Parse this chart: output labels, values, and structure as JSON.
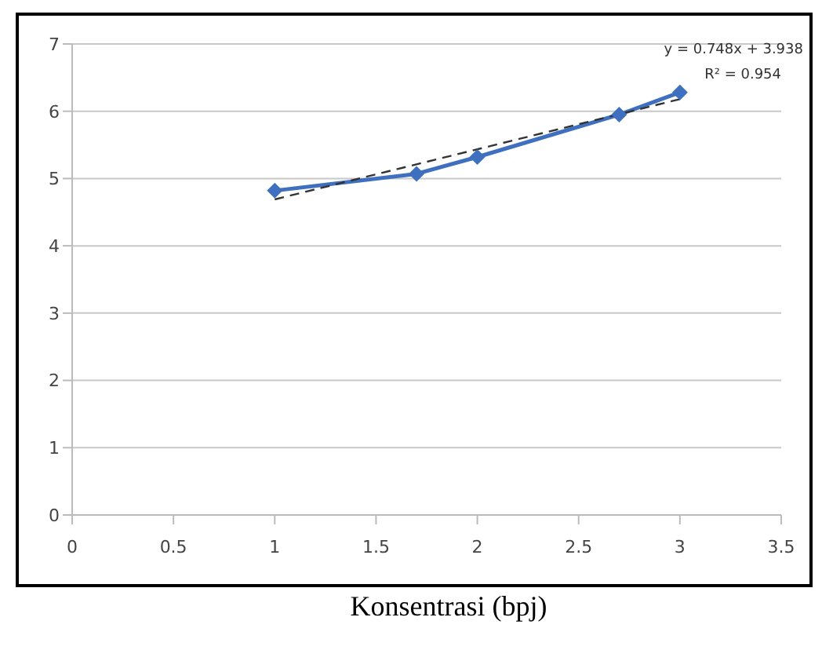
{
  "chart_data": {
    "type": "line",
    "xlabel": "Konsentrasi (bpj)",
    "xlim": [
      0,
      3.5
    ],
    "xticks": [
      0,
      0.5,
      1,
      1.5,
      2,
      2.5,
      3,
      3.5
    ],
    "ylim": [
      0,
      7
    ],
    "yticks": [
      0,
      1,
      2,
      3,
      4,
      5,
      6,
      7
    ],
    "grid": "y",
    "annotations": [
      "y = 0.748x + 3.938",
      "R² = 0.954"
    ],
    "series": [
      {
        "color": "#3f6fbf",
        "marker": "diamond",
        "line_style": "solid",
        "x": [
          1,
          1.7,
          2,
          2.7,
          3
        ],
        "values": [
          4.82,
          5.07,
          5.32,
          5.95,
          6.28
        ]
      },
      {
        "color": "#333333",
        "marker": "none",
        "line_style": "dashed",
        "x": [
          1,
          3
        ],
        "values": [
          4.69,
          6.18
        ]
      }
    ]
  }
}
